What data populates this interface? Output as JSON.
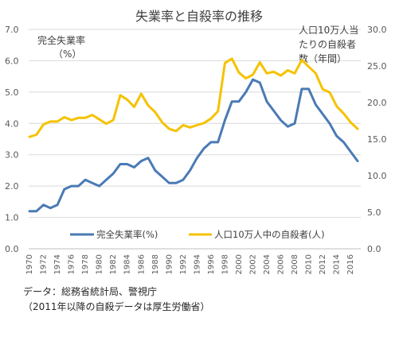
{
  "chart_data": {
    "type": "line",
    "title": "失業率と自殺率の推移",
    "left_axis_label": [
      "完全失業率",
      "（%）"
    ],
    "right_axis_label": [
      "人口10万人当",
      "たりの自殺者",
      "数（年間）"
    ],
    "left_ylim": [
      0,
      7
    ],
    "left_ticks": [
      "0.0",
      "1.0",
      "2.0",
      "3.0",
      "4.0",
      "5.0",
      "6.0",
      "7.0"
    ],
    "right_ylim": [
      0,
      30
    ],
    "right_ticks": [
      "0.0",
      "5.0",
      "10.0",
      "15.0",
      "20.0",
      "25.0",
      "30.0"
    ],
    "x_tick_labels": [
      "1970",
      "1972",
      "1974",
      "1976",
      "1978",
      "1980",
      "1982",
      "1984",
      "1986",
      "1988",
      "1990",
      "1992",
      "1994",
      "1996",
      "1998",
      "2000",
      "2002",
      "2004",
      "2006",
      "2008",
      "2010",
      "2012",
      "2014",
      "2016"
    ],
    "x_years": [
      1970,
      1971,
      1972,
      1973,
      1974,
      1975,
      1976,
      1977,
      1978,
      1979,
      1980,
      1981,
      1982,
      1983,
      1984,
      1985,
      1986,
      1987,
      1988,
      1989,
      1990,
      1991,
      1992,
      1993,
      1994,
      1995,
      1996,
      1997,
      1998,
      1999,
      2000,
      2001,
      2002,
      2003,
      2004,
      2005,
      2006,
      2007,
      2008,
      2009,
      2010,
      2011,
      2012,
      2013,
      2014,
      2015,
      2016,
      2017
    ],
    "grid": true,
    "legend_position": "bottom-center",
    "series": [
      {
        "name": "完全失業率(%)",
        "axis": "left",
        "color": "#4a7ab5",
        "values": [
          1.2,
          1.2,
          1.4,
          1.3,
          1.4,
          1.9,
          2.0,
          2.0,
          2.2,
          2.1,
          2.0,
          2.2,
          2.4,
          2.7,
          2.7,
          2.6,
          2.8,
          2.9,
          2.5,
          2.3,
          2.1,
          2.1,
          2.2,
          2.5,
          2.9,
          3.2,
          3.4,
          3.4,
          4.1,
          4.7,
          4.7,
          5.0,
          5.4,
          5.3,
          4.7,
          4.4,
          4.1,
          3.9,
          4.0,
          5.1,
          5.1,
          4.6,
          4.3,
          4.0,
          3.6,
          3.4,
          3.1,
          2.8
        ]
      },
      {
        "name": "人口10万人中の自殺者(人)",
        "axis": "right",
        "color": "#f5c200",
        "values": [
          15.3,
          15.6,
          17.0,
          17.4,
          17.4,
          18.0,
          17.6,
          17.9,
          17.9,
          18.3,
          17.7,
          17.1,
          17.6,
          21.0,
          20.4,
          19.4,
          21.2,
          19.6,
          18.7,
          17.3,
          16.4,
          16.1,
          16.9,
          16.6,
          16.9,
          17.2,
          17.8,
          18.8,
          25.4,
          26.0,
          24.1,
          23.3,
          23.8,
          25.5,
          24.0,
          24.2,
          23.7,
          24.4,
          24.0,
          25.8,
          24.9,
          24.0,
          21.8,
          21.4,
          19.5,
          18.5,
          17.3,
          16.4
        ]
      }
    ]
  },
  "source_note": [
    "データ：総務省統計局、警視庁",
    "（2011年以降の自殺データは厚生労働省）"
  ]
}
